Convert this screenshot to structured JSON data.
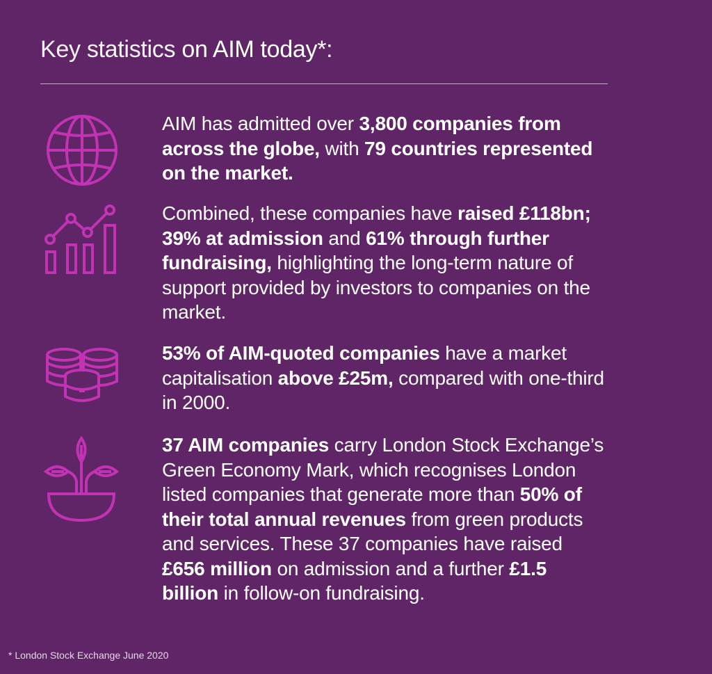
{
  "colors": {
    "background": "#5f2566",
    "icon": "#c233b4",
    "text": "#ffffff"
  },
  "title": {
    "part1": "Key statistics ",
    "part2": "on AIM today*:"
  },
  "stats": [
    {
      "icon": "globe-icon",
      "t1": "AIM has admitted over ",
      "b1": "3,800 companies from across the globe,",
      "t2": " with ",
      "b2": "79 countries represented on the market."
    },
    {
      "icon": "growth-chart-icon",
      "t1": "Combined, these companies have ",
      "b1": "raised £118bn; 39% at admission",
      "t2": " and ",
      "b2": "61% through further fundraising,",
      "t3": " highlighting the long-term nature of support provided by investors to companies on the market."
    },
    {
      "icon": "coin-stacks-icon",
      "b1": "53% of AIM-quoted companies",
      "t1": " have a market capitalisation ",
      "b2": "above £25m,",
      "t2": " compared with one-third in 2000."
    },
    {
      "icon": "plant-icon",
      "b1": "37 AIM companies",
      "t1": " carry London Stock Exchange’s Green Economy Mark, which recognises London listed companies that generate more than ",
      "b2": "50% of their total annual revenues",
      "t2": " from green products and services. These 37 companies have raised ",
      "b3": "£656 million",
      "t3": " on admission and a further ",
      "b4": "£1.5 billion",
      "t4": " in follow-on fundraising."
    }
  ],
  "footnote": "* London Stock Exchange June 2020"
}
